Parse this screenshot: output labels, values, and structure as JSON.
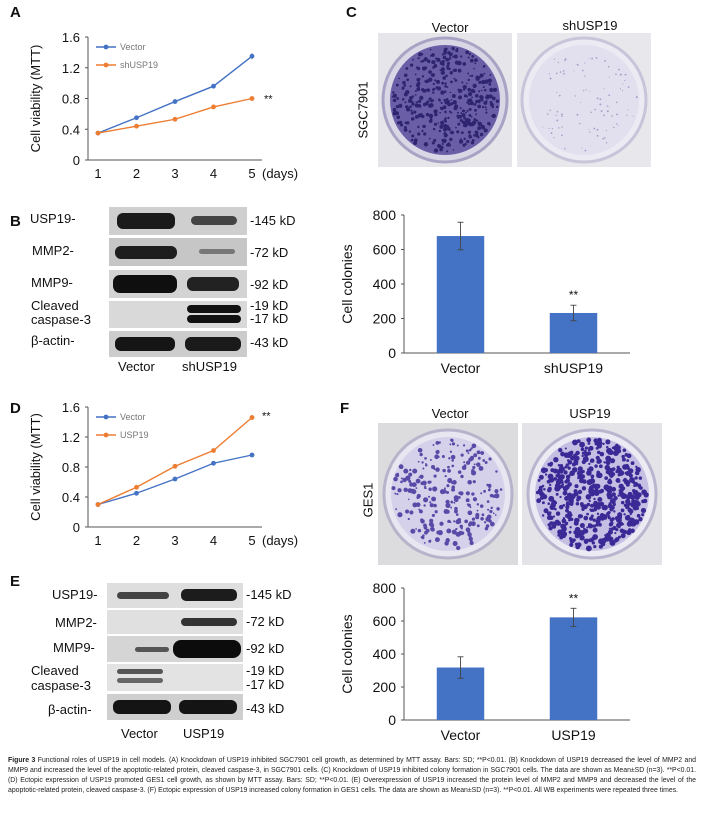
{
  "panels": {
    "A": "A",
    "B": "B",
    "C": "C",
    "D": "D",
    "E": "E",
    "F": "F"
  },
  "chart_data": [
    {
      "id": "A",
      "type": "line",
      "x": [
        1,
        2,
        3,
        4,
        5
      ],
      "xunit": "(days)",
      "xlabel": "",
      "ylabel": "Cell viability (MTT)",
      "ylim": [
        0,
        1.6
      ],
      "yticks": [
        "0",
        "0.4",
        "0.8",
        "1.2",
        "1.6"
      ],
      "series": [
        {
          "name": "Vector",
          "color": "#4472c4",
          "values": [
            0.35,
            0.55,
            0.76,
            0.96,
            1.35
          ],
          "err": [
            0.02,
            0.02,
            0.02,
            0.02,
            0.04
          ]
        },
        {
          "name": "shUSP19",
          "color": "#ed7d31",
          "values": [
            0.35,
            0.44,
            0.53,
            0.69,
            0.8
          ],
          "err": [
            0.02,
            0.02,
            0.02,
            0.02,
            0.03
          ]
        }
      ],
      "annotation": "**"
    },
    {
      "id": "C",
      "type": "bar",
      "categories": [
        "Vector",
        "shUSP19"
      ],
      "values": [
        678,
        232
      ],
      "err": [
        80,
        45
      ],
      "color": "#4472c4",
      "ylabel": "Cell colonies",
      "ylim": [
        0,
        800
      ],
      "yticks": [
        "0",
        "200",
        "400",
        "600",
        "800"
      ],
      "annotation": "**"
    },
    {
      "id": "D",
      "type": "line",
      "x": [
        1,
        2,
        3,
        4,
        5
      ],
      "xunit": "(days)",
      "xlabel": "",
      "ylabel": "Cell viability (MTT)",
      "ylim": [
        0,
        1.6
      ],
      "yticks": [
        "0",
        "0.4",
        "0.8",
        "1.2",
        "1.6"
      ],
      "series": [
        {
          "name": "Vector",
          "color": "#4472c4",
          "values": [
            0.3,
            0.45,
            0.64,
            0.85,
            0.96
          ],
          "err": [
            0.01,
            0.01,
            0.01,
            0.01,
            0.02
          ]
        },
        {
          "name": "USP19",
          "color": "#ed7d31",
          "values": [
            0.3,
            0.53,
            0.81,
            1.02,
            1.46
          ],
          "err": [
            0.01,
            0.01,
            0.02,
            0.02,
            0.03
          ]
        }
      ],
      "annotation": "**"
    },
    {
      "id": "F",
      "type": "bar",
      "categories": [
        "Vector",
        "USP19"
      ],
      "values": [
        318,
        622
      ],
      "err": [
        65,
        55
      ],
      "color": "#4472c4",
      "ylabel": "Cell colonies",
      "ylim": [
        0,
        800
      ],
      "yticks": [
        "0",
        "200",
        "400",
        "600",
        "800"
      ],
      "annotation": "**"
    }
  ],
  "plates": {
    "C": {
      "labels": [
        "Vector",
        "shUSP19"
      ],
      "side": "SGC7901"
    },
    "F": {
      "labels": [
        "Vector",
        "USP19"
      ],
      "side": "GES1"
    }
  },
  "blots": {
    "B": {
      "left": [
        "USP19-",
        "MMP2-",
        "MMP9-",
        "Cleaved",
        "caspase-3",
        "β-actin-"
      ],
      "right": [
        "-145 kD",
        "-72 kD",
        "-92 kD",
        "-19 kD",
        "-17 kD",
        "-43 kD"
      ],
      "lanes": [
        "Vector",
        "shUSP19"
      ]
    },
    "E": {
      "left": [
        "USP19-",
        "MMP2-",
        "MMP9-",
        "Cleaved",
        "caspase-3",
        "β-actin-"
      ],
      "right": [
        "-145 kD",
        "-72 kD",
        "-92 kD",
        "-19 kD",
        "-17 kD",
        "-43 kD"
      ],
      "lanes": [
        "Vector",
        "USP19"
      ]
    }
  },
  "caption": {
    "lead": "Figure 3",
    "text": " Functional roles of USP19 in cell models. (A) Knockdown of USP19 inhibited SGC7901 cell growth, as determined by MTT assay. Bars: SD; **P<0.01. (B) Knockdown of USP19 decreased the level of MMP2 and MMP9 and increased the level of the apoptotic-related protein, cleaved caspase-3, in SGC7901 cells. (C) Knockdown of USP19 inhibited colony formation in SGC7901 cells. The data are shown as Mean±SD (n=3). **P<0.01. (D) Ectopic expression of USP19 promoted GES1 cell growth, as shown by MTT assay. Bars: SD; **P<0.01. (E) Overexpression of USP19 increased the protein level of MMP2 and MMP9 and decreased the level of the apoptotic-related protein, cleaved caspase-3. (F) Ectopic expression of USP19 increased colony formation in GES1 cells. The data are shown as Mean±SD (n=3). **P<0.01. All WB experiments were repeated three times."
  }
}
